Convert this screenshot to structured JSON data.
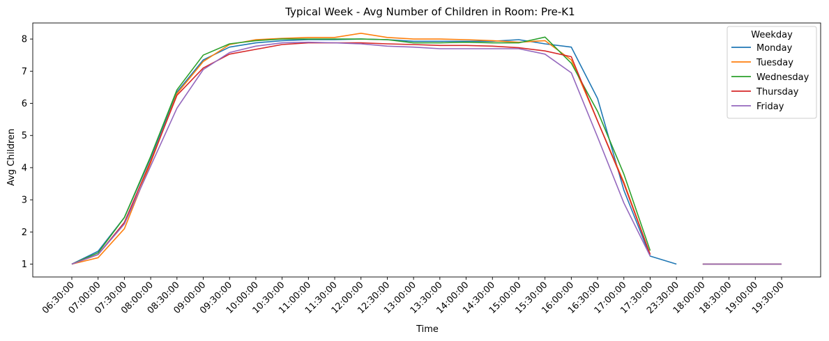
{
  "chart_data": {
    "type": "line",
    "title": "Typical Week - Avg Number of Children in Room: Pre-K1",
    "xlabel": "Time",
    "ylabel": "Avg Children",
    "ylim": [
      0.6,
      8.5
    ],
    "yticks": [
      1,
      2,
      3,
      4,
      5,
      6,
      7,
      8
    ],
    "grid": false,
    "legend_title": "Weekday",
    "legend_position": "top-right",
    "categories": [
      "06:30:00",
      "07:00:00",
      "07:30:00",
      "08:00:00",
      "08:30:00",
      "09:00:00",
      "09:30:00",
      "10:00:00",
      "10:30:00",
      "11:00:00",
      "11:30:00",
      "12:00:00",
      "12:30:00",
      "13:00:00",
      "13:30:00",
      "14:00:00",
      "14:30:00",
      "15:00:00",
      "15:30:00",
      "16:00:00",
      "16:30:00",
      "17:00:00",
      "17:30:00",
      "23:30:00",
      "18:00:00",
      "18:30:00",
      "19:00:00",
      "19:30:00"
    ],
    "series": [
      {
        "name": "Monday",
        "color": "#1f77b4",
        "values": [
          1.0,
          1.4,
          2.45,
          4.3,
          6.35,
          7.35,
          7.75,
          7.88,
          7.95,
          7.98,
          7.98,
          8.0,
          7.98,
          7.93,
          7.93,
          7.93,
          7.93,
          7.98,
          7.85,
          7.75,
          6.15,
          3.3,
          1.25,
          1.0,
          null,
          null,
          null,
          null
        ]
      },
      {
        "name": "Tuesday",
        "color": "#ff7f0e",
        "values": [
          1.0,
          1.2,
          2.1,
          4.15,
          6.3,
          7.3,
          7.83,
          7.98,
          8.02,
          8.05,
          8.05,
          8.18,
          8.05,
          8.0,
          8.0,
          7.98,
          7.95,
          7.9,
          7.95,
          7.35,
          5.45,
          3.55,
          1.3,
          null,
          1.0,
          1.0,
          1.0,
          1.0
        ]
      },
      {
        "name": "Wednesday",
        "color": "#2ca02c",
        "values": [
          1.0,
          1.35,
          2.45,
          4.35,
          6.42,
          7.5,
          7.85,
          7.95,
          8.0,
          8.0,
          8.0,
          8.0,
          7.98,
          7.88,
          7.88,
          7.9,
          7.88,
          7.88,
          8.06,
          7.25,
          5.75,
          3.8,
          1.42,
          null,
          1.0,
          1.0,
          1.0,
          1.0
        ]
      },
      {
        "name": "Thursday",
        "color": "#d62728",
        "values": [
          1.0,
          1.3,
          2.3,
          4.2,
          6.25,
          7.1,
          7.53,
          7.68,
          7.83,
          7.88,
          7.88,
          7.88,
          7.85,
          7.83,
          7.8,
          7.8,
          7.78,
          7.73,
          7.63,
          7.45,
          5.45,
          3.5,
          1.3,
          null,
          1.0,
          1.0,
          1.0,
          1.0
        ]
      },
      {
        "name": "Friday",
        "color": "#9467bd",
        "values": [
          1.0,
          1.3,
          2.25,
          4.05,
          5.85,
          7.05,
          7.58,
          7.78,
          7.88,
          7.9,
          7.88,
          7.85,
          7.78,
          7.75,
          7.7,
          7.7,
          7.7,
          7.7,
          7.53,
          6.95,
          4.95,
          2.9,
          1.25,
          null,
          1.0,
          1.0,
          1.0,
          1.0
        ]
      }
    ]
  }
}
